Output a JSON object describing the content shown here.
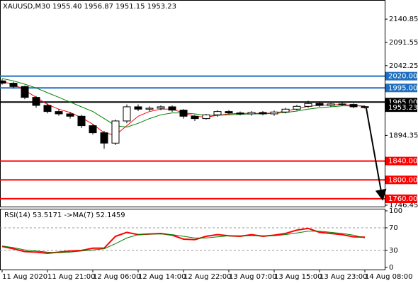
{
  "chart_data": {
    "type": "candlestick",
    "title": "XAUUSD,M30  1955.40 1956.87 1951.15 1953.23",
    "x": [
      0,
      4,
      8,
      12,
      16,
      20,
      24,
      28,
      32,
      36,
      40,
      44,
      48,
      52,
      56,
      60,
      64,
      68,
      72,
      76,
      80,
      84,
      88,
      92,
      96,
      100,
      104,
      108,
      112,
      116,
      120,
      124,
      128
    ],
    "open": [
      2010,
      2005,
      1998,
      1975,
      1958,
      1945,
      1940,
      1935,
      1915,
      1900,
      1878,
      1925,
      1955,
      1950,
      1952,
      1955,
      1948,
      1935,
      1930,
      1938,
      1945,
      1942,
      1940,
      1943,
      1940,
      1944,
      1950,
      1956,
      1962,
      1958,
      1961,
      1960,
      1955.4
    ],
    "high": [
      2014,
      2008,
      2000,
      1978,
      1962,
      1950,
      1944,
      1938,
      1918,
      1904,
      1928,
      1960,
      1960,
      1956,
      1958,
      1958,
      1950,
      1938,
      1940,
      1948,
      1948,
      1945,
      1946,
      1946,
      1947,
      1953,
      1959,
      1968,
      1965,
      1963,
      1964,
      1962,
      1956.87
    ],
    "low": [
      2002,
      1994,
      1971,
      1953,
      1941,
      1936,
      1930,
      1910,
      1896,
      1866,
      1874,
      1920,
      1946,
      1946,
      1948,
      1944,
      1930,
      1925,
      1928,
      1934,
      1939,
      1937,
      1936,
      1937,
      1936,
      1941,
      1947,
      1953,
      1955,
      1955,
      1957,
      1952,
      1951.15
    ],
    "close": [
      2005,
      1998,
      1975,
      1958,
      1945,
      1940,
      1935,
      1915,
      1900,
      1878,
      1925,
      1955,
      1950,
      1952,
      1955,
      1948,
      1935,
      1930,
      1938,
      1945,
      1942,
      1940,
      1943,
      1940,
      1944,
      1950,
      1956,
      1962,
      1958,
      1961,
      1960,
      1955,
      1953.23
    ],
    "series": [
      {
        "color": "#ff0000",
        "values": [
          2008,
          2003,
          1990,
          1975,
          1960,
          1950,
          1943,
          1932,
          1918,
          1900,
          1895,
          1915,
          1935,
          1945,
          1950,
          1950,
          1942,
          1935,
          1933,
          1937,
          1940,
          1941,
          1941,
          1941,
          1942,
          1946,
          1951,
          1956,
          1958,
          1959,
          1960,
          1958,
          1956
        ]
      },
      {
        "color": "#008000",
        "values": [
          2015,
          2010,
          2003,
          1995,
          1985,
          1975,
          1965,
          1955,
          1945,
          1930,
          1915,
          1912,
          1920,
          1930,
          1938,
          1942,
          1942,
          1940,
          1937,
          1937,
          1938,
          1939,
          1940,
          1940,
          1941,
          1943,
          1946,
          1950,
          1953,
          1955,
          1957,
          1957,
          1957
        ]
      }
    ],
    "xlim": [
      -0.75,
      135
    ],
    "xticks": [
      {
        "value": 0,
        "label": "11 Aug 2020"
      },
      {
        "value": 16,
        "label": "11 Aug 21:00"
      },
      {
        "value": 32,
        "label": "12 Aug 06:00"
      },
      {
        "value": 48,
        "label": "12 Aug 14:00"
      },
      {
        "value": 64,
        "label": "12 Aug 22:00"
      },
      {
        "value": 80,
        "label": "13 Aug 07:00"
      },
      {
        "value": 96,
        "label": "13 Aug 15:00"
      },
      {
        "value": 112,
        "label": "13 Aug 23:00"
      },
      {
        "value": 128,
        "label": "14 Aug 08:00"
      }
    ],
    "ylim": [
      1743.4,
      2181.5
    ],
    "yticks": [
      2140.85,
      2091.55,
      2042.25,
      1894.35,
      1746.45
    ],
    "levels": [
      {
        "value": 2020,
        "label": "2020.00",
        "color": "#1f6fbf"
      },
      {
        "value": 1995,
        "label": "1995.00",
        "color": "#1f6fbf"
      },
      {
        "value": 1965,
        "label": "1965.00",
        "color": "#000000"
      },
      {
        "value": 1840,
        "label": "1840.00",
        "color": "#ff0000"
      },
      {
        "value": 1800,
        "label": "1800.00",
        "color": "#ff0000"
      },
      {
        "value": 1760,
        "label": "1760.00",
        "color": "#ff0000"
      }
    ],
    "price_label": {
      "value": 1953.23,
      "label": "1953.23"
    },
    "indicator": {
      "title": "RSI(14) 53.5171 ->MA(7) 52.1459",
      "series": [
        {
          "color": "#ff0000",
          "values": [
            37,
            33,
            28,
            27,
            25,
            27,
            29,
            30,
            34,
            34,
            55,
            62,
            58,
            59,
            60,
            57,
            50,
            49,
            55,
            58,
            56,
            55,
            58,
            55,
            57,
            60,
            66,
            69,
            62,
            60,
            58,
            54,
            53.5171
          ]
        },
        {
          "color": "#008000",
          "values": [
            38,
            35,
            31,
            29,
            27,
            26,
            27,
            29,
            31,
            33,
            42,
            52,
            58,
            59,
            59,
            58,
            55,
            52,
            52,
            54,
            56,
            56,
            56,
            56,
            56,
            58,
            61,
            64,
            64,
            62,
            60,
            57,
            52.1459
          ]
        }
      ],
      "ylim": [
        0,
        100
      ],
      "yticks": [
        100,
        70,
        30,
        0
      ],
      "levels": [
        70,
        30
      ]
    }
  }
}
